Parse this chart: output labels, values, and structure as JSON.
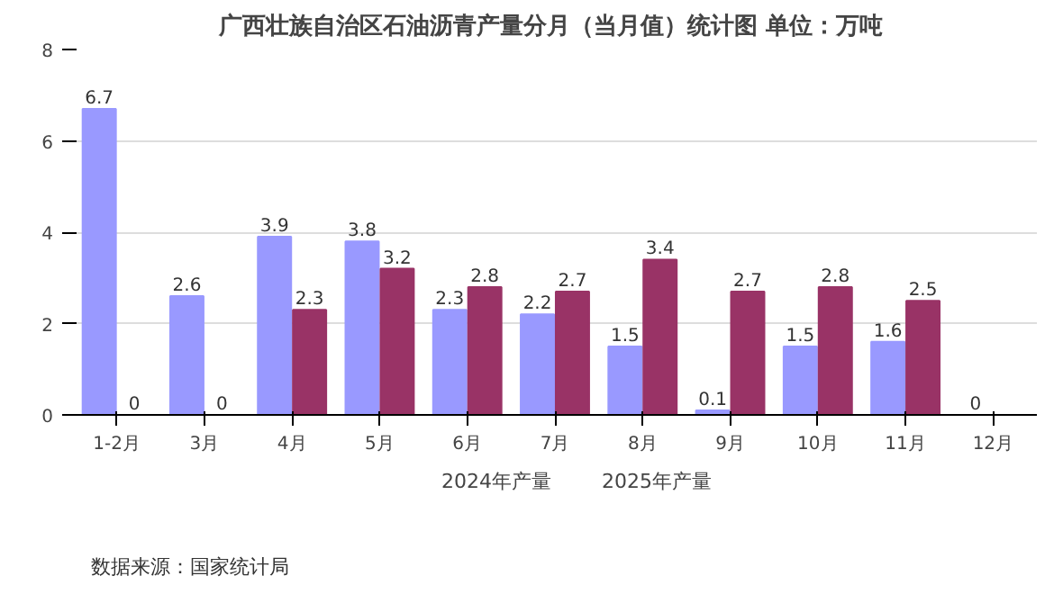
{
  "chart_data": {
    "type": "bar",
    "title": "广西壮族自治区石油沥青产量分月（当月值）统计图  单位：万吨",
    "categories": [
      "1-2月",
      "3月",
      "4月",
      "5月",
      "6月",
      "7月",
      "8月",
      "9月",
      "10月",
      "11月",
      "12月"
    ],
    "series": [
      {
        "name": "2024年产量",
        "color": "#9999ff",
        "values": [
          6.7,
          2.6,
          3.9,
          3.8,
          2.3,
          2.2,
          1.5,
          0.1,
          1.5,
          1.6,
          0
        ]
      },
      {
        "name": "2025年产量",
        "color": "#993366",
        "values": [
          0,
          0,
          2.3,
          3.2,
          2.8,
          2.7,
          3.4,
          2.7,
          2.8,
          2.5,
          null
        ]
      }
    ],
    "ylim": [
      0,
      8
    ],
    "yticks": [
      0,
      2,
      4,
      6,
      8
    ],
    "grid": "y",
    "legend": "bottom",
    "data_labels": true,
    "annotations": [
      "数据来源：国家统计局"
    ]
  }
}
